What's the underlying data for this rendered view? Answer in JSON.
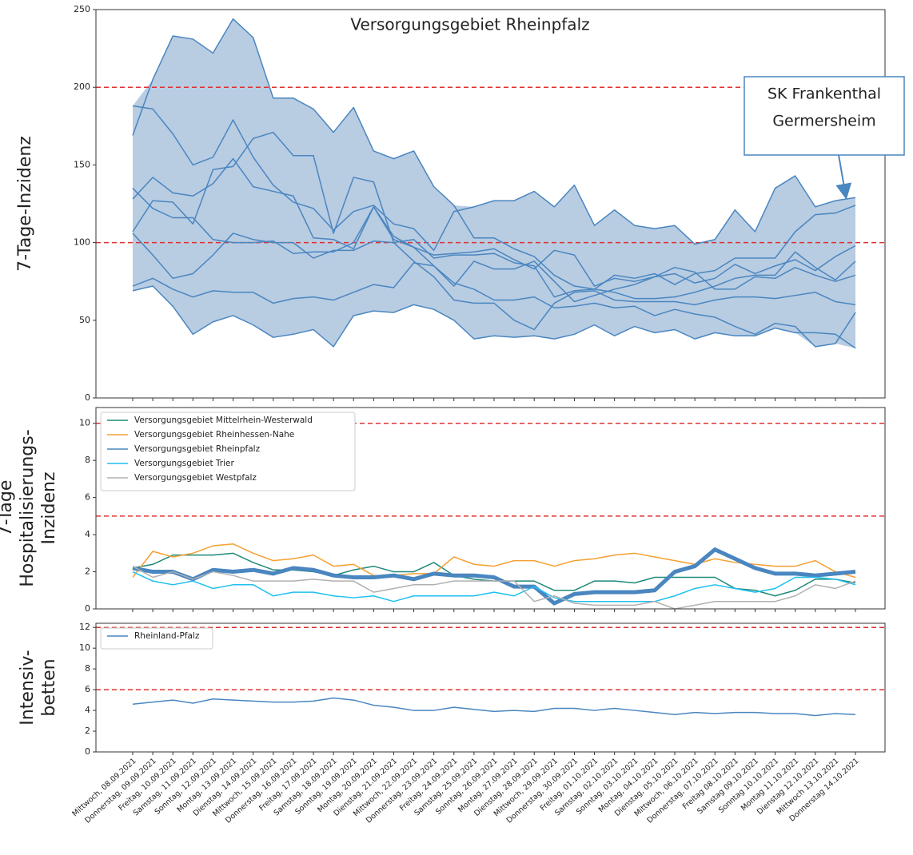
{
  "chart_data": [
    {
      "type": "line",
      "title": "Versorgungsgebiet Rheinpfalz",
      "ylabel": [
        "7-Tage-Inzidenz"
      ],
      "ylim": [
        0,
        250
      ],
      "yticks": [
        0,
        50,
        100,
        150,
        200,
        250
      ],
      "hlines": [
        100,
        200
      ],
      "hline_color": "#e03030",
      "band": true,
      "band_color": "#b8cce2",
      "annotation": [
        {
          "text": "SK Frankenthal",
          "color": "#222222"
        },
        {
          "text": "Germersheim",
          "color": "#d42020"
        }
      ],
      "series": [
        {
          "color": "#4a86c0",
          "values": [
            169,
            205,
            233,
            231,
            222,
            244,
            232,
            193,
            193,
            186,
            171,
            187,
            159,
            154,
            159,
            136,
            124,
            103,
            103,
            96,
            91,
            79,
            72,
            70,
            68,
            64,
            64,
            65,
            68,
            72,
            77,
            79,
            79,
            94,
            84,
            76,
            88
          ]
        },
        {
          "color": "#4a86c0",
          "values": [
            188,
            186,
            170,
            150,
            155,
            179,
            155,
            137,
            126,
            122,
            108,
            120,
            124,
            112,
            109,
            95,
            120,
            123,
            127,
            127,
            133,
            123,
            137,
            111,
            121,
            111,
            109,
            111,
            99,
            102,
            121,
            107,
            135,
            143,
            123,
            127,
            129
          ]
        },
        {
          "color": "#4a86c0",
          "values": [
            107,
            127,
            126,
            112,
            147,
            149,
            167,
            171,
            156,
            156,
            106,
            142,
            139,
            100,
            102,
            90,
            92,
            92,
            93,
            87,
            85,
            65,
            69,
            70,
            79,
            77,
            80,
            73,
            80,
            82,
            90,
            90,
            90,
            107,
            118,
            119,
            124
          ]
        },
        {
          "color": "#4a86c0",
          "values": [
            135,
            122,
            116,
            116,
            102,
            100,
            100,
            101,
            93,
            94,
            94,
            100,
            123,
            104,
            97,
            92,
            93,
            94,
            96,
            89,
            83,
            95,
            92,
            72,
            77,
            75,
            78,
            80,
            74,
            77,
            86,
            80,
            85,
            89,
            82,
            91,
            98
          ]
        },
        {
          "color": "#4a86c0",
          "values": [
            128,
            142,
            132,
            130,
            138,
            154,
            136,
            133,
            130,
            103,
            102,
            96,
            123,
            102,
            97,
            85,
            72,
            88,
            83,
            83,
            88,
            75,
            62,
            66,
            70,
            73,
            78,
            84,
            81,
            70,
            70,
            78,
            77,
            84,
            79,
            75,
            79
          ]
        },
        {
          "color": "#4a86c0",
          "values": [
            106,
            92,
            77,
            80,
            92,
            106,
            102,
            100,
            100,
            90,
            95,
            95,
            101,
            100,
            88,
            78,
            63,
            61,
            61,
            50,
            44,
            61,
            68,
            69,
            63,
            62,
            62,
            62,
            60,
            63,
            65,
            65,
            64,
            66,
            68,
            62,
            60
          ]
        },
        {
          "color": "#4a86c0",
          "values": [
            72,
            77,
            70,
            65,
            69,
            68,
            68,
            61,
            64,
            65,
            63,
            68,
            73,
            71,
            87,
            85,
            74,
            70,
            63,
            63,
            65,
            58,
            59,
            61,
            58,
            59,
            53,
            57,
            54,
            52,
            46,
            41,
            48,
            46,
            33,
            35,
            55
          ]
        },
        {
          "color": "#4a86c0",
          "values": [
            69,
            72,
            59,
            41,
            49,
            53,
            47,
            39,
            41,
            44,
            33,
            53,
            56,
            55,
            60,
            57,
            50,
            38,
            40,
            39,
            40,
            38,
            41,
            47,
            40,
            46,
            42,
            44,
            38,
            42,
            40,
            40,
            45,
            42,
            42,
            41,
            32
          ]
        }
      ]
    },
    {
      "type": "line",
      "ylabel": [
        "7-Tage",
        "Hospitalisierungs-",
        "Inzidenz"
      ],
      "ylim": [
        0,
        10.85
      ],
      "yticks": [
        0,
        2,
        4,
        6,
        8,
        10
      ],
      "hlines": [
        5,
        10
      ],
      "hline_color": "#e03030",
      "series": [
        {
          "name": "Versorgungsgebiet Mittelrhein-Westerwald",
          "color": "#1f8a7a",
          "width": 1.5,
          "values": [
            2.2,
            2.4,
            2.9,
            2.9,
            2.9,
            3.0,
            2.5,
            2.1,
            2.1,
            2.0,
            1.8,
            2.1,
            2.3,
            2.0,
            2.0,
            2.5,
            1.8,
            1.6,
            1.5,
            1.5,
            1.5,
            1.0,
            1.0,
            1.5,
            1.5,
            1.4,
            1.7,
            1.7,
            1.7,
            1.7,
            1.1,
            1.0,
            0.7,
            1.0,
            1.6,
            1.6,
            1.4
          ]
        },
        {
          "name": "Versorgungsgebiet Rheinhessen-Nahe",
          "color": "#f5a031",
          "width": 1.5,
          "values": [
            1.7,
            3.1,
            2.8,
            3.0,
            3.4,
            3.5,
            3.0,
            2.6,
            2.7,
            2.9,
            2.3,
            2.4,
            1.8,
            1.8,
            1.9,
            1.9,
            2.8,
            2.4,
            2.3,
            2.6,
            2.6,
            2.3,
            2.6,
            2.7,
            2.9,
            3.0,
            2.8,
            2.6,
            2.4,
            2.7,
            2.5,
            2.4,
            2.3,
            2.3,
            2.6,
            2.0,
            1.7
          ]
        },
        {
          "name": "Versorgungsgebiet Rheinpfalz",
          "color": "#4a86c0",
          "width": 5,
          "values": [
            2.2,
            2.0,
            2.0,
            1.6,
            2.1,
            2.0,
            2.1,
            1.9,
            2.2,
            2.1,
            1.8,
            1.7,
            1.7,
            1.8,
            1.6,
            1.9,
            1.8,
            1.8,
            1.7,
            1.2,
            1.2,
            0.3,
            0.8,
            0.9,
            0.9,
            0.9,
            1.0,
            2.0,
            2.3,
            3.2,
            2.7,
            2.2,
            1.9,
            1.9,
            1.8,
            1.9,
            2.0
          ]
        },
        {
          "name": "Versorgungsgebiet Trier",
          "color": "#1ec0f0",
          "width": 1.5,
          "values": [
            2.0,
            1.5,
            1.3,
            1.5,
            1.1,
            1.3,
            1.3,
            0.7,
            0.9,
            0.9,
            0.7,
            0.6,
            0.7,
            0.4,
            0.7,
            0.7,
            0.7,
            0.7,
            0.9,
            0.7,
            1.2,
            0.6,
            0.4,
            0.4,
            0.4,
            0.4,
            0.4,
            0.7,
            1.1,
            1.3,
            1.1,
            0.9,
            1.1,
            1.7,
            1.7,
            1.6,
            1.3
          ]
        },
        {
          "name": "Versorgungsgebiet Westpfalz",
          "color": "#b0b0b0",
          "width": 1.5,
          "values": [
            2.3,
            1.7,
            2.0,
            1.6,
            2.0,
            1.8,
            1.5,
            1.5,
            1.5,
            1.6,
            1.5,
            1.5,
            0.9,
            1.1,
            1.3,
            1.3,
            1.5,
            1.5,
            1.5,
            1.5,
            0.4,
            0.7,
            0.3,
            0.2,
            0.2,
            0.2,
            0.4,
            0.0,
            0.2,
            0.4,
            0.4,
            0.4,
            0.4,
            0.7,
            1.3,
            1.1,
            1.5
          ]
        }
      ]
    },
    {
      "type": "line",
      "ylabel": [
        "Intensiv-",
        "betten"
      ],
      "ylim": [
        0,
        12.4
      ],
      "yticks": [
        0,
        2,
        4,
        6,
        8,
        10,
        12
      ],
      "hlines": [
        6,
        12
      ],
      "hline_color": "#e03030",
      "categories": [
        "Mittwoch, 08.09.2021",
        "Donnerstag, 09.09.2021",
        "Freitag, 10.09.2021",
        "Samstag, 11.09.2021",
        "Sonntag, 12.09.2021",
        "Montag, 13.09.2021",
        "Dienstag, 14.09.2021",
        "Mittwoch, 15.09.2021",
        "Donnerstag, 16.09.2021",
        "Freitag, 17.09.2021",
        "Samstag, 18.09.2021",
        "Sonntag, 19.09.2021",
        "Montag, 20.09.2021",
        "Dienstag, 21.09.2021",
        "Mittwoch, 22.09.2021",
        "Donnerstag, 23.09.2021",
        "Freitag, 24.09.2021",
        "Samstag, 25.09.2021",
        "Sonntag, 26.09.2021",
        "Montag, 27.09.2021",
        "Dienstag, 28.09.2021",
        "Mittwoch, 29.09.2021",
        "Donnerstag, 30.09.2021",
        "Freitag, 01.10.2021",
        "Samstag, 02.10.2021",
        "Sonntag, 03.10.2021",
        "Montag, 04.10.2021",
        "Dienstag, 05.10.2021",
        "Mittwoch, 06.10.2021",
        "Donnerstag, 07.10.2021",
        "Freitag 08.10.2021",
        "Samstag 09.10.2021",
        "Sonntag 10.10.2021",
        "Montag 11.10.2021",
        "Dienstag 12.10.2021",
        "Mittwoch 13.10.2021",
        "Donnerstag 14.10.2021"
      ],
      "series": [
        {
          "name": "Rheinland-Pfalz",
          "color": "#4a86c0",
          "width": 1.5,
          "values": [
            4.6,
            4.8,
            5.0,
            4.7,
            5.1,
            5.0,
            4.9,
            4.8,
            4.8,
            4.9,
            5.2,
            5.0,
            4.5,
            4.3,
            4.0,
            4.0,
            4.3,
            4.1,
            3.9,
            4.0,
            3.9,
            4.2,
            4.2,
            4.0,
            4.2,
            4.0,
            3.8,
            3.6,
            3.8,
            3.7,
            3.8,
            3.8,
            3.7,
            3.7,
            3.5,
            3.7,
            3.6
          ]
        }
      ]
    }
  ]
}
